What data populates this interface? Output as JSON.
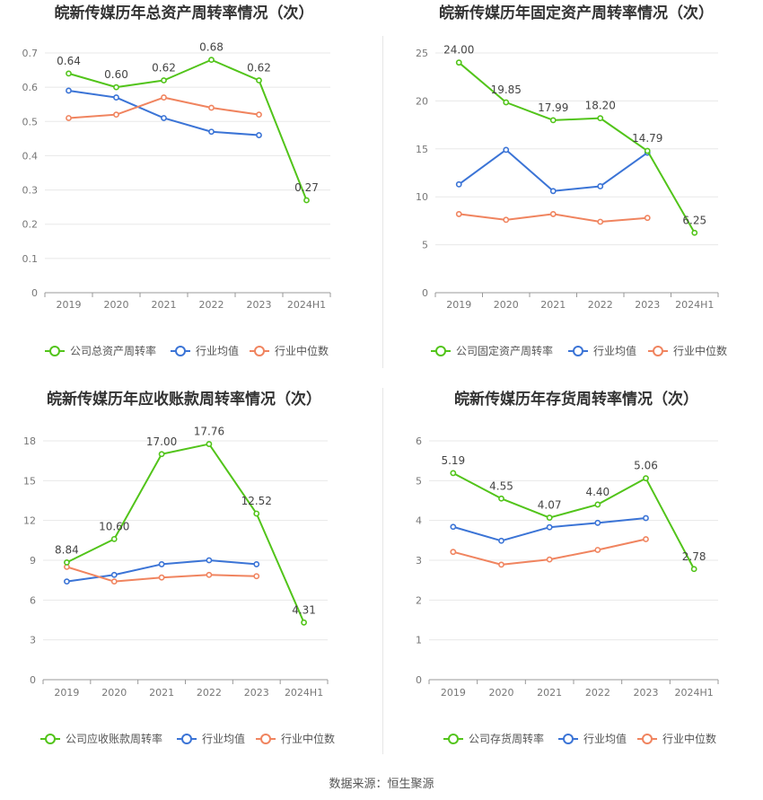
{
  "chart_data": [
    {
      "type": "line",
      "title": "皖新传媒历年总资产周转率情况（次）",
      "categories": [
        "2019",
        "2020",
        "2021",
        "2022",
        "2023",
        "2024H1"
      ],
      "ylim": [
        0,
        0.7
      ],
      "yticks": [
        "0",
        "0.1",
        "0.2",
        "0.3",
        "0.4",
        "0.5",
        "0.6",
        "0.7"
      ],
      "series": [
        {
          "name": "公司总资产周转率",
          "values": [
            0.64,
            0.6,
            0.62,
            0.68,
            0.62,
            0.27
          ],
          "labels": [
            "0.64",
            "0.60",
            "0.62",
            "0.68",
            "0.62",
            "0.27"
          ],
          "color": "#52c41a"
        },
        {
          "name": "行业均值",
          "values": [
            0.59,
            0.57,
            0.51,
            0.47,
            0.46,
            null
          ],
          "color": "#3b74d6"
        },
        {
          "name": "行业中位数",
          "values": [
            0.51,
            0.52,
            0.57,
            0.54,
            0.52,
            null
          ],
          "color": "#f0845f"
        }
      ]
    },
    {
      "type": "line",
      "title": "皖新传媒历年固定资产周转率情况（次）",
      "categories": [
        "2019",
        "2020",
        "2021",
        "2022",
        "2023",
        "2024H1"
      ],
      "ylim": [
        0,
        25
      ],
      "yticks": [
        "0",
        "5",
        "10",
        "15",
        "20",
        "25"
      ],
      "series": [
        {
          "name": "公司固定资产周转率",
          "values": [
            24.0,
            19.85,
            17.99,
            18.2,
            14.79,
            6.25
          ],
          "labels": [
            "24.00",
            "19.85",
            "17.99",
            "18.20",
            "14.79",
            "6.25"
          ],
          "color": "#52c41a"
        },
        {
          "name": "行业均值",
          "values": [
            11.3,
            14.9,
            10.6,
            11.1,
            14.6,
            null
          ],
          "color": "#3b74d6"
        },
        {
          "name": "行业中位数",
          "values": [
            8.2,
            7.6,
            8.2,
            7.4,
            7.8,
            null
          ],
          "color": "#f0845f"
        }
      ]
    },
    {
      "type": "line",
      "title": "皖新传媒历年应收账款周转率情况（次）",
      "categories": [
        "2019",
        "2020",
        "2021",
        "2022",
        "2023",
        "2024H1"
      ],
      "ylim": [
        0,
        18
      ],
      "yticks": [
        "0",
        "3",
        "6",
        "9",
        "12",
        "15",
        "18"
      ],
      "series": [
        {
          "name": "公司应收账款周转率",
          "values": [
            8.84,
            10.6,
            17.0,
            17.76,
            12.52,
            4.31
          ],
          "labels": [
            "8.84",
            "10.60",
            "17.00",
            "17.76",
            "12.52",
            "4.31"
          ],
          "color": "#52c41a"
        },
        {
          "name": "行业均值",
          "values": [
            7.4,
            7.9,
            8.7,
            9.0,
            8.7,
            null
          ],
          "color": "#3b74d6"
        },
        {
          "name": "行业中位数",
          "values": [
            8.5,
            7.4,
            7.7,
            7.9,
            7.8,
            null
          ],
          "color": "#f0845f"
        }
      ]
    },
    {
      "type": "line",
      "title": "皖新传媒历年存货周转率情况（次）",
      "categories": [
        "2019",
        "2020",
        "2021",
        "2022",
        "2023",
        "2024H1"
      ],
      "ylim": [
        0,
        6
      ],
      "yticks": [
        "0",
        "1",
        "2",
        "3",
        "4",
        "5",
        "6"
      ],
      "series": [
        {
          "name": "公司存货周转率",
          "values": [
            5.19,
            4.55,
            4.07,
            4.4,
            5.06,
            2.78
          ],
          "labels": [
            "5.19",
            "4.55",
            "4.07",
            "4.40",
            "5.06",
            "2.78"
          ],
          "color": "#52c41a"
        },
        {
          "name": "行业均值",
          "values": [
            3.84,
            3.49,
            3.83,
            3.94,
            4.06,
            null
          ],
          "color": "#3b74d6"
        },
        {
          "name": "行业中位数",
          "values": [
            3.21,
            2.89,
            3.02,
            3.26,
            3.53,
            null
          ],
          "color": "#f0845f"
        }
      ]
    }
  ],
  "footer": {
    "source": "数据来源：恒生聚源"
  }
}
